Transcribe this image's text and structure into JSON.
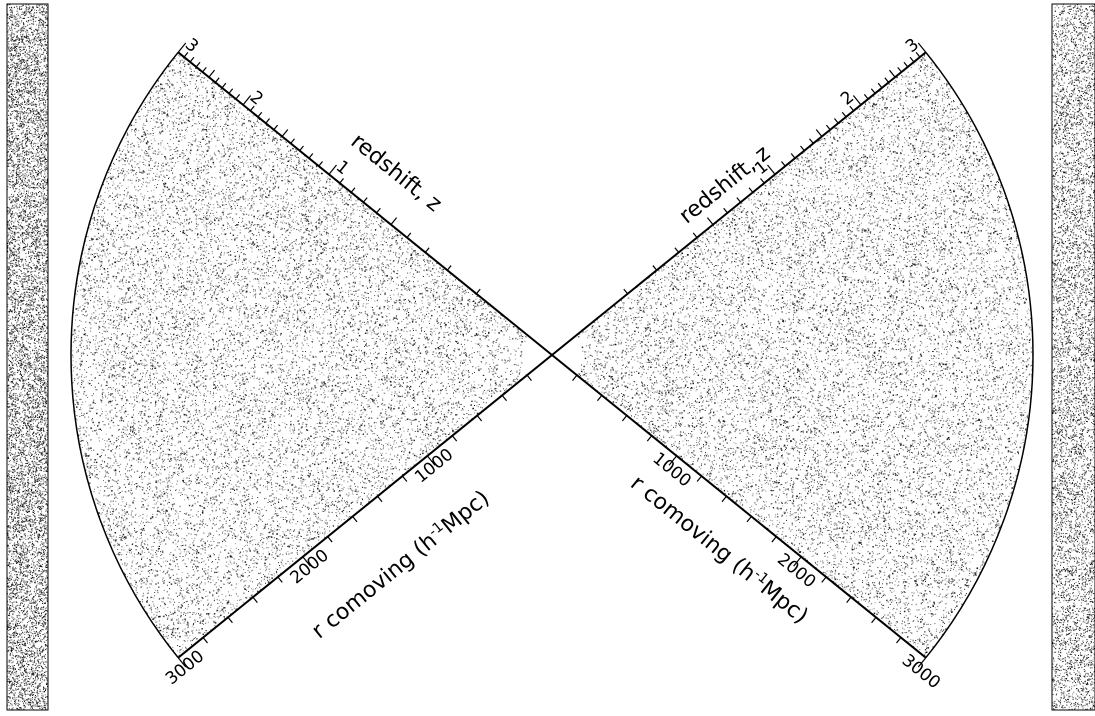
{
  "redshift_axis": {
    "title": "redshift, z",
    "ticks": [
      "1",
      "2",
      "3"
    ],
    "values": [
      1,
      2,
      3
    ]
  },
  "comoving_axis": {
    "title_prefix": "r comoving (h",
    "title_exp": "-1",
    "title_suffix": "Mpc)",
    "ticks": [
      "1000",
      "2000",
      "3000"
    ],
    "values": [
      1000,
      2000,
      3000
    ],
    "max": 3000
  },
  "colors": {
    "ink": "#000000",
    "background": "#ffffff"
  }
}
